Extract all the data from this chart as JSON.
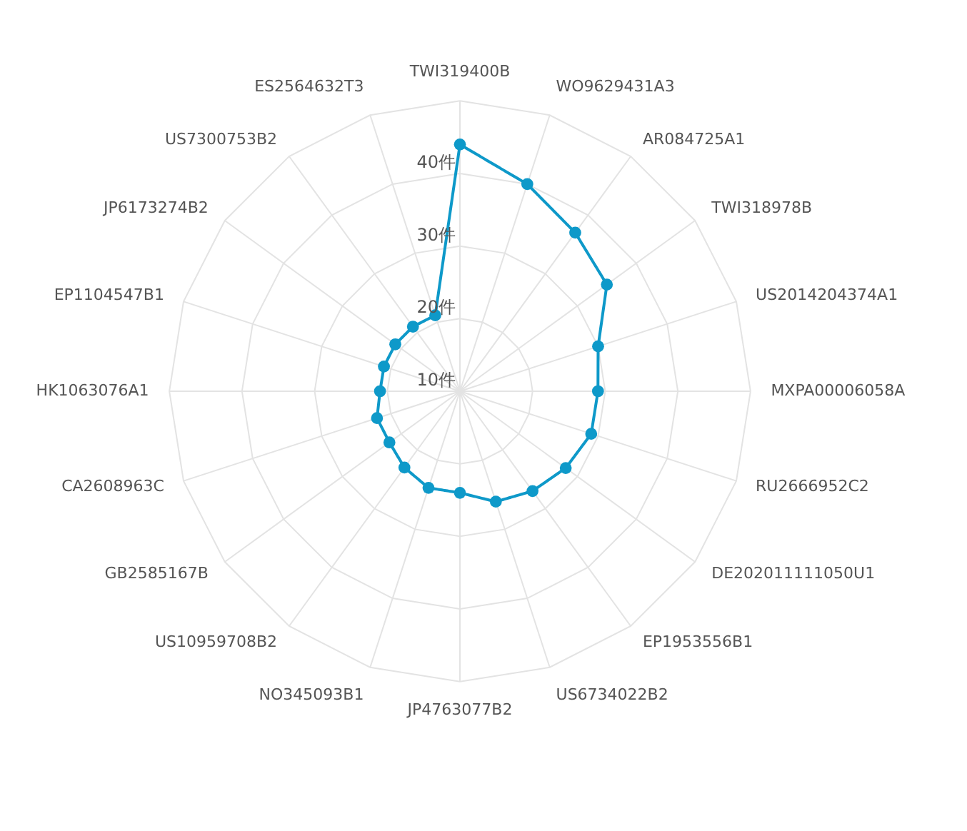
{
  "chart_data": {
    "type": "radar",
    "categories": [
      "TWI319400B",
      "WO9629431A3",
      "AR084725A1",
      "TWI318978B",
      "US2014204374A1",
      "MXPA00006058A",
      "RU2666952C2",
      "DE202011111050U1",
      "EP1953556B1",
      "US6734022B2",
      "JP4763077B2",
      "NO345093B1",
      "US10959708B2",
      "GB2585167B",
      "CA2608963C",
      "HK1063076A1",
      "EP1104547B1",
      "JP6173274B2",
      "US7300753B2",
      "ES2564632T3"
    ],
    "series": [
      {
        "color": "#0e99c9",
        "values": [
          44,
          40,
          37,
          35,
          30,
          29,
          29,
          28,
          27,
          26,
          24,
          24,
          23,
          22,
          22,
          21,
          21,
          21,
          21,
          21
        ]
      }
    ],
    "ylim": [
      10,
      50
    ],
    "yticks": [
      {
        "value": 10,
        "label": "10件"
      },
      {
        "value": 20,
        "label": "20件"
      },
      {
        "value": 30,
        "label": "30件"
      },
      {
        "value": 40,
        "label": "40件"
      }
    ],
    "grid": true,
    "marker": "circle",
    "line_style": "solid"
  }
}
